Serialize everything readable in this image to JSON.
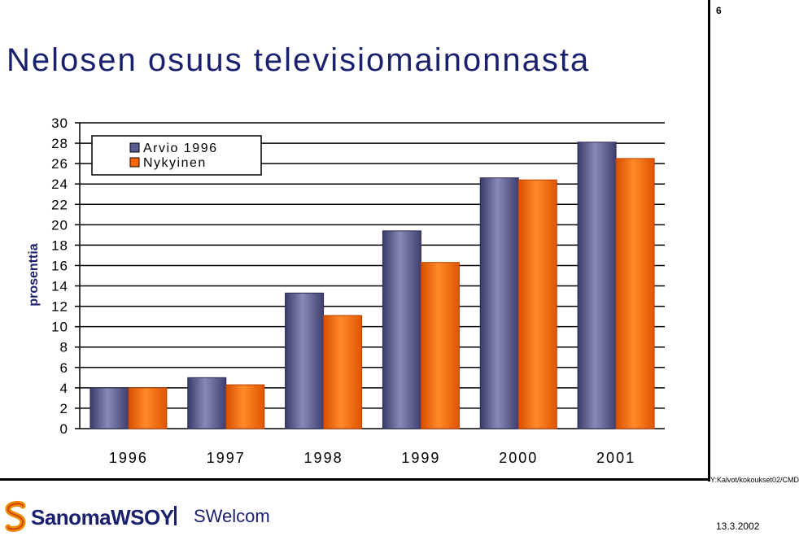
{
  "page_number": "6",
  "title": "Nelosen osuus televisiomainonnasta",
  "footer": {
    "file_path": "Y:Kalvot/kokoukset02/CMD",
    "date": "13.3.2002",
    "logo_text": "SanomaWSOY",
    "sub_brand": "SWelcom"
  },
  "colors": {
    "title": "#1a1f6e",
    "series_arvio": "#5b5b8f",
    "series_nykyinen": "#ff6600"
  },
  "chart_data": {
    "type": "bar",
    "title": "",
    "xlabel": "",
    "ylabel": "prosenttia",
    "ylim": [
      0,
      30
    ],
    "yticks": [
      0,
      2,
      4,
      6,
      8,
      10,
      12,
      14,
      16,
      18,
      20,
      22,
      24,
      26,
      28,
      30
    ],
    "grid": true,
    "legend_position": "top-left",
    "categories": [
      "1996",
      "1997",
      "1998",
      "1999",
      "2000",
      "2001"
    ],
    "series": [
      {
        "name": "Arvio 1996",
        "color": "#5b5b8f",
        "values": [
          4.0,
          5.0,
          13.3,
          19.4,
          24.6,
          28.1
        ]
      },
      {
        "name": "Nykyinen",
        "color": "#ff6600",
        "values": [
          4.0,
          4.3,
          11.1,
          16.3,
          24.4,
          26.5
        ]
      }
    ]
  }
}
